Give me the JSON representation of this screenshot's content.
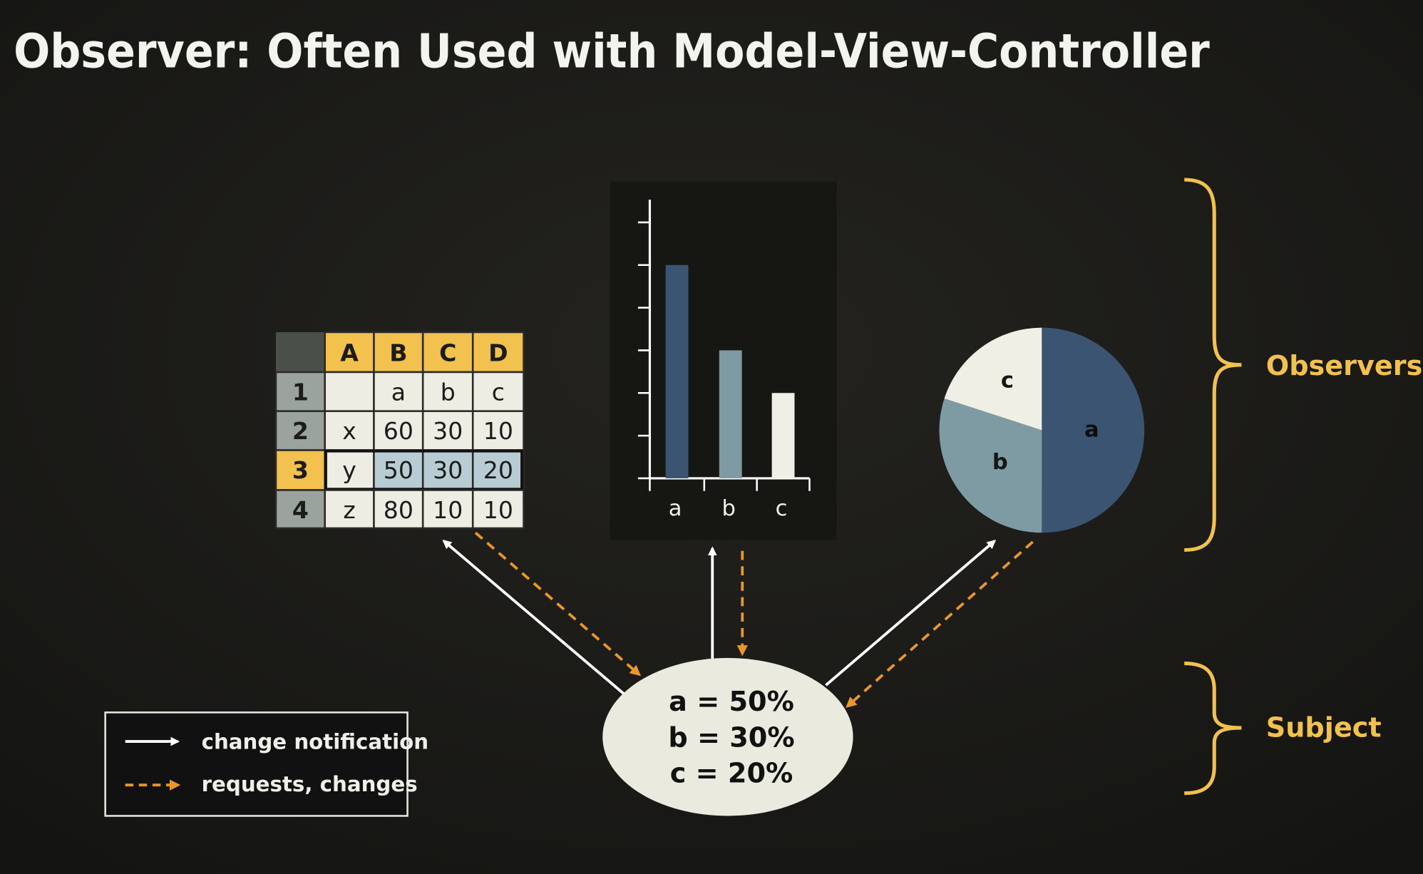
{
  "title": "Observer: Often Used with Model-View-Controller",
  "colors": {
    "background": "#1a1916",
    "accent": "#f2c14e",
    "arrow_request": "#e8962e",
    "arrow_notify": "#ffffff",
    "series_a": "#3b5472",
    "series_b": "#7e9ba3",
    "series_c": "#f0efe6",
    "highlight": "#b8ccd4"
  },
  "spreadsheet": {
    "columns": [
      "A",
      "B",
      "C",
      "D"
    ],
    "rows": [
      {
        "header": "1",
        "cells": [
          "",
          "a",
          "b",
          "c"
        ]
      },
      {
        "header": "2",
        "cells": [
          "x",
          "60",
          "30",
          "10"
        ]
      },
      {
        "header": "3",
        "cells": [
          "y",
          "50",
          "30",
          "20"
        ],
        "selected": true
      },
      {
        "header": "4",
        "cells": [
          "z",
          "80",
          "10",
          "10"
        ]
      }
    ]
  },
  "chart_data": [
    {
      "type": "bar",
      "categories": [
        "a",
        "b",
        "c"
      ],
      "values": [
        50,
        30,
        20
      ],
      "ylim": [
        0,
        65
      ],
      "ytick_step": 10
    },
    {
      "type": "pie",
      "labels": [
        "a",
        "b",
        "c"
      ],
      "values": [
        50,
        30,
        20
      ]
    }
  ],
  "subject": {
    "lines": [
      "a = 50%",
      "b = 30%",
      "c = 20%"
    ]
  },
  "brackets": {
    "observers": "Observers",
    "subject": "Subject"
  },
  "legend": {
    "notify": "change notification",
    "request": "requests, changes"
  }
}
